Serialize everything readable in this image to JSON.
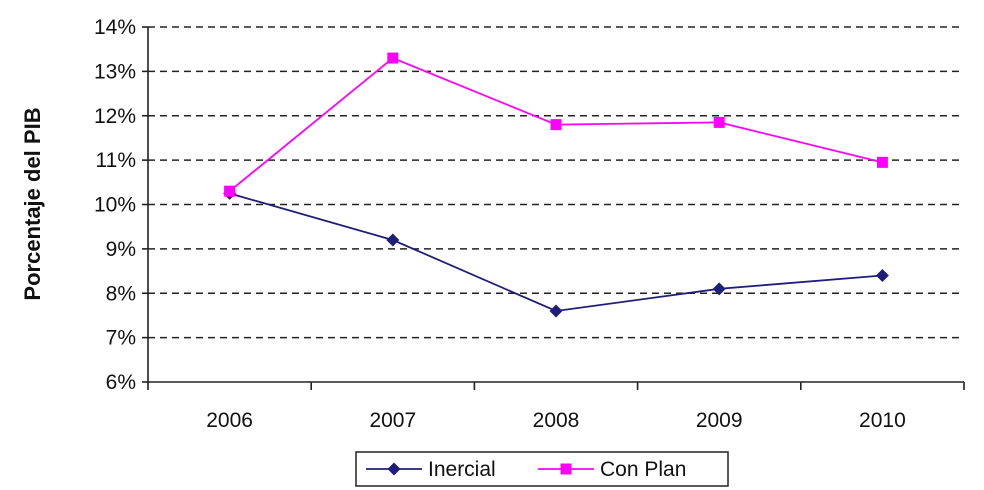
{
  "chart_data": {
    "type": "line",
    "ylabel": "Porcentaje del PIB",
    "xlabel": "",
    "categories": [
      "2006",
      "2007",
      "2008",
      "2009",
      "2010"
    ],
    "ylim": [
      6,
      14
    ],
    "y_ticks": [
      6,
      7,
      8,
      9,
      10,
      11,
      12,
      13,
      14
    ],
    "y_tick_labels": [
      "6%",
      "7%",
      "8%",
      "9%",
      "10%",
      "11%",
      "12%",
      "13%",
      "14%"
    ],
    "grid": "horizontal dashed",
    "legend_position": "bottom",
    "series": [
      {
        "name": "Inercial",
        "marker": "diamond",
        "color": "#1f1f7a",
        "values": [
          10.25,
          9.2,
          7.6,
          8.1,
          8.4
        ]
      },
      {
        "name": "Con Plan",
        "marker": "square",
        "color": "#ff00ff",
        "values": [
          10.3,
          13.3,
          11.8,
          11.85,
          10.95
        ]
      }
    ]
  }
}
